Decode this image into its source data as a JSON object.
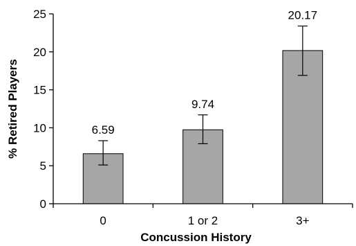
{
  "chart_data": {
    "type": "bar",
    "categories": [
      "0",
      "1 or 2",
      "3+"
    ],
    "values": [
      6.59,
      9.74,
      20.17
    ],
    "error_low": [
      5.1,
      7.9,
      16.9
    ],
    "error_high": [
      8.3,
      11.7,
      23.4
    ],
    "data_labels": [
      "6.59",
      "9.74",
      "20.17"
    ],
    "xlabel": "Concussion History",
    "ylabel": "% Retired Players",
    "ylim": [
      0,
      25
    ],
    "yticks": [
      0,
      5,
      10,
      15,
      20,
      25
    ],
    "grid": false,
    "legend": "none",
    "bar_color": "#a6a6a6"
  }
}
